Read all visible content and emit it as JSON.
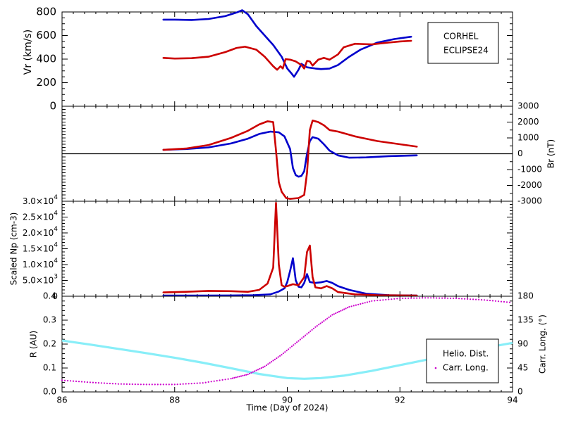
{
  "colors": {
    "corhel": "#0000cc",
    "eclipse": "#cc0000",
    "helio": "#88eef8",
    "carr": "#cc00cc",
    "axis": "#000000"
  },
  "chart_data": [
    {
      "type": "line",
      "panel": "vr",
      "ylabel": "Vr (km/s)",
      "ylim": [
        0,
        800
      ],
      "yticks": [
        0,
        200,
        400,
        600,
        800
      ],
      "ytick_labels": [
        "0",
        "200",
        "400",
        "600",
        "800"
      ],
      "xlim": [
        86,
        94
      ],
      "legend": {
        "placement": "top-right",
        "entries": [
          "CORHEL",
          "ECLIPSE24"
        ]
      },
      "series": [
        {
          "name": "CORHEL",
          "color_key": "corhel",
          "points": [
            [
              87.8,
              735
            ],
            [
              88.0,
              735
            ],
            [
              88.3,
              732
            ],
            [
              88.6,
              740
            ],
            [
              88.9,
              765
            ],
            [
              89.1,
              795
            ],
            [
              89.2,
              815
            ],
            [
              89.3,
              780
            ],
            [
              89.45,
              680
            ],
            [
              89.6,
              600
            ],
            [
              89.75,
              520
            ],
            [
              89.9,
              420
            ],
            [
              90.0,
              320
            ],
            [
              90.08,
              275
            ],
            [
              90.12,
              250
            ],
            [
              90.2,
              310
            ],
            [
              90.25,
              360
            ],
            [
              90.35,
              330
            ],
            [
              90.5,
              320
            ],
            [
              90.6,
              315
            ],
            [
              90.75,
              320
            ],
            [
              90.9,
              350
            ],
            [
              91.1,
              420
            ],
            [
              91.3,
              480
            ],
            [
              91.6,
              540
            ],
            [
              91.9,
              570
            ],
            [
              92.2,
              590
            ]
          ]
        },
        {
          "name": "ECLIPSE24",
          "color_key": "eclipse",
          "points": [
            [
              87.8,
              410
            ],
            [
              88.0,
              405
            ],
            [
              88.3,
              408
            ],
            [
              88.6,
              420
            ],
            [
              88.9,
              460
            ],
            [
              89.1,
              495
            ],
            [
              89.25,
              505
            ],
            [
              89.45,
              480
            ],
            [
              89.6,
              420
            ],
            [
              89.75,
              340
            ],
            [
              89.82,
              310
            ],
            [
              89.88,
              340
            ],
            [
              89.92,
              320
            ],
            [
              89.97,
              400
            ],
            [
              90.05,
              395
            ],
            [
              90.15,
              380
            ],
            [
              90.25,
              350
            ],
            [
              90.3,
              320
            ],
            [
              90.35,
              385
            ],
            [
              90.4,
              380
            ],
            [
              90.45,
              345
            ],
            [
              90.55,
              395
            ],
            [
              90.65,
              410
            ],
            [
              90.75,
              395
            ],
            [
              90.9,
              440
            ],
            [
              91.0,
              500
            ],
            [
              91.2,
              530
            ],
            [
              91.5,
              525
            ],
            [
              91.8,
              540
            ],
            [
              92.0,
              550
            ],
            [
              92.2,
              555
            ]
          ]
        }
      ]
    },
    {
      "type": "line",
      "panel": "br",
      "ylabel": "Br (nT)",
      "ylim": [
        -3000,
        3000
      ],
      "yticks": [
        -3000,
        -2000,
        -1000,
        0,
        1000,
        2000,
        3000
      ],
      "ytick_labels": [
        "-3000",
        "-2000",
        "-1000",
        "0",
        "1000",
        "2000",
        "3000"
      ],
      "xlim": [
        86,
        94
      ],
      "series": [
        {
          "name": "CORHEL",
          "color_key": "corhel",
          "points": [
            [
              87.8,
              250
            ],
            [
              88.2,
              300
            ],
            [
              88.6,
              400
            ],
            [
              89.0,
              650
            ],
            [
              89.3,
              950
            ],
            [
              89.5,
              1250
            ],
            [
              89.7,
              1400
            ],
            [
              89.85,
              1350
            ],
            [
              89.95,
              1100
            ],
            [
              90.05,
              300
            ],
            [
              90.1,
              -900
            ],
            [
              90.15,
              -1350
            ],
            [
              90.2,
              -1450
            ],
            [
              90.25,
              -1400
            ],
            [
              90.3,
              -1100
            ],
            [
              90.35,
              0
            ],
            [
              90.4,
              800
            ],
            [
              90.45,
              1050
            ],
            [
              90.55,
              950
            ],
            [
              90.65,
              600
            ],
            [
              90.75,
              200
            ],
            [
              90.9,
              -100
            ],
            [
              91.1,
              -250
            ],
            [
              91.4,
              -230
            ],
            [
              91.8,
              -150
            ],
            [
              92.3,
              -100
            ]
          ]
        },
        {
          "name": "ECLIPSE24",
          "color_key": "eclipse",
          "points": [
            [
              87.8,
              250
            ],
            [
              88.2,
              330
            ],
            [
              88.6,
              550
            ],
            [
              89.0,
              1000
            ],
            [
              89.3,
              1450
            ],
            [
              89.5,
              1850
            ],
            [
              89.65,
              2050
            ],
            [
              89.75,
              2000
            ],
            [
              89.8,
              200
            ],
            [
              89.85,
              -1800
            ],
            [
              89.9,
              -2400
            ],
            [
              89.98,
              -2800
            ],
            [
              90.05,
              -2850
            ],
            [
              90.2,
              -2800
            ],
            [
              90.3,
              -2600
            ],
            [
              90.35,
              -1200
            ],
            [
              90.4,
              1500
            ],
            [
              90.45,
              2100
            ],
            [
              90.55,
              2000
            ],
            [
              90.65,
              1800
            ],
            [
              90.75,
              1500
            ],
            [
              90.9,
              1400
            ],
            [
              91.2,
              1100
            ],
            [
              91.6,
              800
            ],
            [
              92.0,
              600
            ],
            [
              92.3,
              450
            ]
          ]
        }
      ]
    },
    {
      "type": "line",
      "panel": "np",
      "ylabel": "Scaled Np (cm-3)",
      "ylim": [
        0,
        30000
      ],
      "yticks": [
        0,
        5000,
        10000,
        15000,
        20000,
        25000,
        30000
      ],
      "ytick_mantissas": [
        "0",
        "5.0×10",
        "1.0×10",
        "1.5×10",
        "2.0×10",
        "2.5×10",
        "3.0×10"
      ],
      "ytick_exponents": [
        "",
        "3",
        "4",
        "4",
        "4",
        "4",
        "4"
      ],
      "xlim": [
        86,
        94
      ],
      "series": [
        {
          "name": "CORHEL",
          "color_key": "corhel",
          "points": [
            [
              87.8,
              200
            ],
            [
              88.5,
              200
            ],
            [
              89.0,
              250
            ],
            [
              89.4,
              300
            ],
            [
              89.7,
              600
            ],
            [
              89.85,
              1500
            ],
            [
              89.95,
              2500
            ],
            [
              90.0,
              4500
            ],
            [
              90.05,
              8000
            ],
            [
              90.1,
              12000
            ],
            [
              90.15,
              5000
            ],
            [
              90.2,
              3000
            ],
            [
              90.25,
              2800
            ],
            [
              90.3,
              4200
            ],
            [
              90.35,
              7000
            ],
            [
              90.4,
              4500
            ],
            [
              90.5,
              4200
            ],
            [
              90.6,
              4400
            ],
            [
              90.7,
              4800
            ],
            [
              90.8,
              4200
            ],
            [
              90.9,
              3200
            ],
            [
              91.1,
              2000
            ],
            [
              91.4,
              800
            ],
            [
              91.8,
              300
            ],
            [
              92.3,
              200
            ]
          ]
        },
        {
          "name": "ECLIPSE24",
          "color_key": "eclipse",
          "points": [
            [
              87.8,
              1200
            ],
            [
              88.2,
              1400
            ],
            [
              88.6,
              1700
            ],
            [
              89.0,
              1600
            ],
            [
              89.3,
              1400
            ],
            [
              89.5,
              2000
            ],
            [
              89.65,
              4000
            ],
            [
              89.75,
              9000
            ],
            [
              89.8,
              29500
            ],
            [
              89.85,
              10000
            ],
            [
              89.9,
              3500
            ],
            [
              89.95,
              3000
            ],
            [
              90.0,
              3200
            ],
            [
              90.1,
              3800
            ],
            [
              90.2,
              3500
            ],
            [
              90.3,
              6000
            ],
            [
              90.35,
              14000
            ],
            [
              90.4,
              16000
            ],
            [
              90.45,
              6000
            ],
            [
              90.5,
              2800
            ],
            [
              90.6,
              2500
            ],
            [
              90.7,
              3200
            ],
            [
              90.8,
              2500
            ],
            [
              90.9,
              1300
            ],
            [
              91.2,
              600
            ],
            [
              91.6,
              300
            ],
            [
              92.3,
              200
            ]
          ]
        }
      ]
    },
    {
      "type": "line",
      "panel": "orbit",
      "ylabel_left": "R (AU)",
      "ylabel_right": "Carr. Long. (°)",
      "xlabel": "Time (Day of 2024)",
      "ylim_left": [
        0,
        0.4
      ],
      "yticks_left": [
        0,
        0.1,
        0.2,
        0.3,
        0.4
      ],
      "ytick_labels_left": [
        "0.0",
        "0.1",
        "0.2",
        "0.3",
        "0.4"
      ],
      "ylim_right": [
        0,
        180
      ],
      "yticks_right": [
        0,
        45,
        90,
        135,
        180
      ],
      "ytick_labels_right": [
        "0",
        "45",
        "90",
        "135",
        "180"
      ],
      "xlim": [
        86,
        94
      ],
      "xticks": [
        86,
        88,
        90,
        92,
        94
      ],
      "xtick_labels": [
        "86",
        "88",
        "90",
        "92",
        "94"
      ],
      "legend": {
        "placement": "bottom-right",
        "entries": [
          "Helio. Dist.",
          "Carr. Long."
        ]
      },
      "series": [
        {
          "name": "Helio. Dist.",
          "color_key": "helio",
          "axis": "left",
          "points": [
            [
              86.0,
              0.215
            ],
            [
              86.5,
              0.198
            ],
            [
              87.0,
              0.18
            ],
            [
              87.5,
              0.162
            ],
            [
              88.0,
              0.143
            ],
            [
              88.5,
              0.122
            ],
            [
              89.0,
              0.099
            ],
            [
              89.5,
              0.075
            ],
            [
              90.0,
              0.058
            ],
            [
              90.3,
              0.055
            ],
            [
              90.6,
              0.058
            ],
            [
              91.0,
              0.068
            ],
            [
              91.5,
              0.088
            ],
            [
              92.0,
              0.112
            ],
            [
              92.5,
              0.136
            ],
            [
              93.0,
              0.16
            ],
            [
              93.5,
              0.184
            ],
            [
              94.0,
              0.205
            ]
          ]
        },
        {
          "name": "Carr. Long.",
          "color_key": "carr",
          "axis": "right",
          "points": [
            [
              86.0,
              22
            ],
            [
              86.5,
              18
            ],
            [
              87.0,
              15
            ],
            [
              87.5,
              14
            ],
            [
              88.0,
              14
            ],
            [
              88.5,
              17
            ],
            [
              89.0,
              25
            ],
            [
              89.3,
              33
            ],
            [
              89.6,
              48
            ],
            [
              89.9,
              70
            ],
            [
              90.2,
              96
            ],
            [
              90.5,
              122
            ],
            [
              90.8,
              145
            ],
            [
              91.1,
              160
            ],
            [
              91.5,
              171
            ],
            [
              92.0,
              176
            ],
            [
              92.5,
              177
            ],
            [
              93.0,
              176
            ],
            [
              93.5,
              173
            ],
            [
              94.0,
              168
            ]
          ]
        }
      ]
    }
  ]
}
